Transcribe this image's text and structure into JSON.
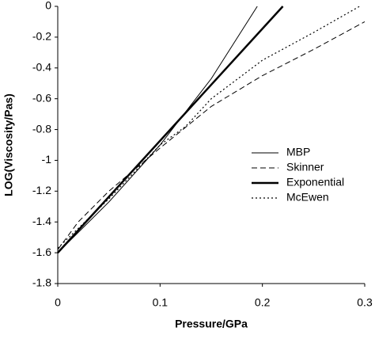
{
  "chart_data": {
    "type": "line",
    "xlabel": "Pressure/GPa",
    "ylabel": "LOG(Viscosity/Pas)",
    "xlim": [
      0,
      0.3
    ],
    "xticks": [
      0,
      0.1,
      0.2,
      0.3
    ],
    "ylim": [
      -1.8,
      0
    ],
    "yticks": [
      0,
      -0.2,
      -0.4,
      -0.6,
      -0.8,
      -1,
      -1.2,
      -1.4,
      -1.6,
      -1.8
    ],
    "legend": "right",
    "series": [
      {
        "name": "MBP",
        "color": "#000000",
        "style": "solid",
        "width": 1,
        "x": [
          0,
          0.05,
          0.1,
          0.15,
          0.195
        ],
        "values": [
          -1.6,
          -1.27,
          -0.9,
          -0.47,
          0
        ]
      },
      {
        "name": "Skinner",
        "color": "#000000",
        "style": "dashed",
        "width": 1,
        "x": [
          0,
          0.02,
          0.05,
          0.1,
          0.15,
          0.2,
          0.25,
          0.3
        ],
        "values": [
          -1.58,
          -1.4,
          -1.2,
          -0.92,
          -0.65,
          -0.45,
          -0.28,
          -0.1
        ]
      },
      {
        "name": "Exponential",
        "color": "#000000",
        "style": "solid",
        "width": 2.5,
        "x": [
          0,
          0.22
        ],
        "values": [
          -1.6,
          0
        ]
      },
      {
        "name": "McEwen",
        "color": "#000000",
        "style": "dotted",
        "width": 1.2,
        "x": [
          0,
          0.05,
          0.1,
          0.125,
          0.15,
          0.2,
          0.25,
          0.295
        ],
        "values": [
          -1.57,
          -1.25,
          -0.9,
          -0.78,
          -0.6,
          -0.35,
          -0.17,
          0
        ]
      }
    ]
  }
}
